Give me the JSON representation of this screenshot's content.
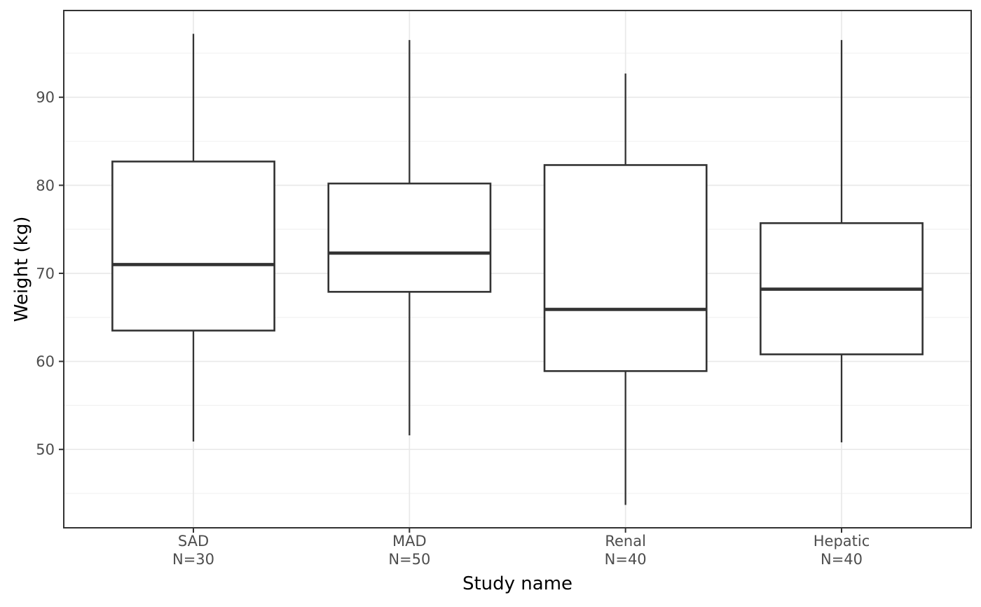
{
  "chart_data": {
    "type": "boxplot",
    "title": "",
    "xlabel": "Study name",
    "ylabel": "Weight (kg)",
    "legend": false,
    "grid": true,
    "y_axis": {
      "domain": [
        41.1,
        99.85
      ],
      "ticks": [
        50,
        60,
        70,
        80,
        90
      ],
      "minor_ticks": [
        45,
        55,
        65,
        75,
        85,
        95
      ]
    },
    "boxes": [
      {
        "label": "SAD",
        "sublabel": "N=30",
        "min": 50.9,
        "q1": 63.5,
        "median": 71.0,
        "q3": 82.7,
        "max": 97.2
      },
      {
        "label": "MAD",
        "sublabel": "N=50",
        "min": 51.6,
        "q1": 67.9,
        "median": 72.3,
        "q3": 80.2,
        "max": 96.5
      },
      {
        "label": "Renal",
        "sublabel": "N=40",
        "min": 43.7,
        "q1": 58.9,
        "median": 65.9,
        "q3": 82.3,
        "max": 92.7
      },
      {
        "label": "Hepatic",
        "sublabel": "N=40",
        "min": 50.8,
        "q1": 60.8,
        "median": 68.2,
        "q3": 75.7,
        "max": 96.5
      }
    ]
  },
  "style": {
    "background": "#ffffff",
    "panel_background": "#ffffff",
    "panel_border": "#333333",
    "box_line": "#333333",
    "grid_major": "#e9e9e9",
    "grid_minor": "#f2f2f2",
    "tick_mark": "#333333",
    "tick_label": "#4d4d4d",
    "axis_title": "#000000"
  }
}
